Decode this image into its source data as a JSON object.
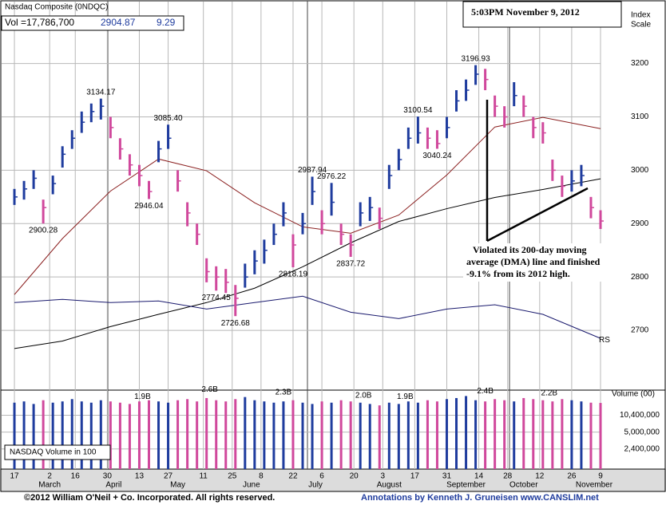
{
  "chart_data": {
    "type": "ohlc",
    "title": "Nasdaq Composite  (0NDQC)",
    "quote": {
      "volume_text": "Vol =17,786,700",
      "price": 2904.87,
      "change": 9.29
    },
    "timestamp": "5:03PM November 9, 2012",
    "axis_title": [
      "Index",
      "Scale"
    ],
    "volume_axis_title": "Volume (00)",
    "volume_legend": "NASDAQ Volume in 100",
    "note": [
      "Violated its 200-day moving",
      "average (DMA) line and finished",
      "-9.1% from its 2012 high."
    ],
    "rs_label": "RS",
    "footer_left": "©2012 William O'Neil + Co. Incorporated. All rights reserved.",
    "footer_right": "Annotations by Kenneth J. Gruneisen www.CANSLIM.net",
    "up_color": "#1f3c9e",
    "down_color": "#d0489c",
    "xlim": [
      -4,
      183
    ],
    "xticks": [
      {
        "value": 0,
        "label": "17"
      },
      {
        "value": 11,
        "label": "2"
      },
      {
        "value": 19,
        "label": "16"
      },
      {
        "value": 29,
        "label": "30"
      },
      {
        "value": 39,
        "label": "13"
      },
      {
        "value": 48,
        "label": "27"
      },
      {
        "value": 59,
        "label": "11"
      },
      {
        "value": 68,
        "label": "25"
      },
      {
        "value": 77,
        "label": "8"
      },
      {
        "value": 87,
        "label": "22"
      },
      {
        "value": 96,
        "label": "6"
      },
      {
        "value": 106,
        "label": "20"
      },
      {
        "value": 115,
        "label": "3"
      },
      {
        "value": 125,
        "label": "17"
      },
      {
        "value": 135,
        "label": "31"
      },
      {
        "value": 145,
        "label": "14"
      },
      {
        "value": 154,
        "label": "28"
      },
      {
        "value": 164,
        "label": "12"
      },
      {
        "value": 174,
        "label": "26"
      },
      {
        "value": 183,
        "label": "9"
      }
    ],
    "months": [
      {
        "value": 11,
        "label": "March"
      },
      {
        "value": 31,
        "label": "April"
      },
      {
        "value": 51,
        "label": "May"
      },
      {
        "value": 74,
        "label": "June"
      },
      {
        "value": 94,
        "label": "July"
      },
      {
        "value": 117,
        "label": "August"
      },
      {
        "value": 141,
        "label": "September"
      },
      {
        "value": 159,
        "label": "October"
      },
      {
        "value": 181,
        "label": "November"
      }
    ],
    "ylim": [
      2591,
      3316
    ],
    "yticks": [
      2700,
      2800,
      2900,
      3000,
      3100,
      3200
    ],
    "bars": [
      [
        0,
        2935,
        2965,
        2950
      ],
      [
        3,
        2945,
        2980,
        2965
      ],
      [
        6,
        2965,
        3000,
        2985
      ],
      [
        9,
        2900.28,
        2945,
        2930
      ],
      [
        12,
        2955,
        2990,
        2975
      ],
      [
        15,
        3005,
        3045,
        3030
      ],
      [
        18,
        3040,
        3075,
        3060
      ],
      [
        21,
        3070,
        3110,
        3090
      ],
      [
        24,
        3090,
        3125,
        3110
      ],
      [
        27,
        3095,
        3134.17,
        3120
      ],
      [
        30,
        3060,
        3100,
        3080
      ],
      [
        33,
        3020,
        3060,
        3040
      ],
      [
        36,
        2990,
        3030,
        3010
      ],
      [
        39,
        2970,
        3010,
        2990
      ],
      [
        42,
        2946.04,
        2980,
        2960
      ],
      [
        45,
        3015,
        3055,
        3040
      ],
      [
        48,
        3040,
        3085.4,
        3060
      ],
      [
        51,
        2960,
        3000,
        2980
      ],
      [
        54,
        2895,
        2940,
        2920
      ],
      [
        57,
        2860,
        2900,
        2880
      ],
      [
        60,
        2790,
        2835,
        2810
      ],
      [
        63,
        2774.45,
        2820,
        2800
      ],
      [
        66,
        2770,
        2815,
        2790
      ],
      [
        69,
        2726.68,
        2785,
        2760
      ],
      [
        72,
        2780,
        2825,
        2800
      ],
      [
        75,
        2805,
        2850,
        2830
      ],
      [
        78,
        2825,
        2870,
        2850
      ],
      [
        81,
        2860,
        2900,
        2880
      ],
      [
        84,
        2895,
        2940,
        2920
      ],
      [
        87,
        2818.19,
        2880,
        2860
      ],
      [
        90,
        2880,
        2920,
        2900
      ],
      [
        93,
        2935,
        2987.94,
        2960
      ],
      [
        96,
        2880,
        2925,
        2900
      ],
      [
        99,
        2915,
        2976.22,
        2940
      ],
      [
        102,
        2860,
        2900,
        2880
      ],
      [
        105,
        2837.72,
        2880,
        2860
      ],
      [
        108,
        2895,
        2940,
        2920
      ],
      [
        111,
        2905,
        2950,
        2930
      ],
      [
        114,
        2890,
        2930,
        2910
      ],
      [
        117,
        2965,
        3010,
        2990
      ],
      [
        120,
        3000,
        3040,
        3020
      ],
      [
        123,
        3040,
        3080,
        3060
      ],
      [
        126,
        3050,
        3100.54,
        3070
      ],
      [
        129,
        3040,
        3080,
        3060
      ],
      [
        132,
        3040.24,
        3075,
        3050
      ],
      [
        135,
        3060,
        3100,
        3080
      ],
      [
        138,
        3110,
        3150,
        3130
      ],
      [
        141,
        3130,
        3170,
        3150
      ],
      [
        144,
        3160,
        3196.93,
        3180
      ],
      [
        147,
        3150,
        3190,
        3170
      ],
      [
        150,
        3100,
        3140,
        3120
      ],
      [
        153,
        3080,
        3120,
        3100
      ],
      [
        156,
        3120,
        3165,
        3140
      ],
      [
        159,
        3100,
        3140,
        3120
      ],
      [
        162,
        3060,
        3100,
        3080
      ],
      [
        165,
        3050,
        3090,
        3070
      ],
      [
        168,
        2980,
        3020,
        3000
      ],
      [
        171,
        2950,
        2990,
        2970
      ],
      [
        174,
        2960,
        3000,
        2980
      ],
      [
        177,
        2970,
        3010,
        2990
      ],
      [
        180,
        2910,
        2950,
        2930
      ],
      [
        183,
        2890,
        2925,
        2904.87
      ]
    ],
    "annotations": [
      {
        "day": 9,
        "value": 2900.28
      },
      {
        "day": 27,
        "value": 3134.17
      },
      {
        "day": 42,
        "value": 2946.04
      },
      {
        "day": 48,
        "value": 3085.4,
        "label": "3085.40"
      },
      {
        "day": 63,
        "value": 2774.45
      },
      {
        "day": 69,
        "value": 2726.68
      },
      {
        "day": 87,
        "value": 2818.19
      },
      {
        "day": 93,
        "value": 2987.94
      },
      {
        "day": 99,
        "value": 2976.22
      },
      {
        "day": 105,
        "value": 2837.72
      },
      {
        "day": 126,
        "value": 3100.54
      },
      {
        "day": 132,
        "value": 3040.24
      },
      {
        "day": 144,
        "value": 3196.93
      }
    ],
    "series": [
      {
        "color": "#000000",
        "x": [
          0,
          15,
          30,
          45,
          60,
          75,
          90,
          105,
          120,
          135,
          150,
          165,
          183
        ],
        "values": [
          2666,
          2680,
          2707,
          2730,
          2752,
          2779,
          2819,
          2864,
          2904,
          2928,
          2949,
          2964,
          2984
        ]
      },
      {
        "color": "#8b2020",
        "x": [
          0,
          15,
          30,
          45,
          60,
          75,
          90,
          105,
          120,
          135,
          150,
          165,
          183
        ],
        "values": [
          2767,
          2872,
          2961,
          3021,
          2999,
          2939,
          2894,
          2882,
          2916,
          2991,
          3081,
          3099,
          3078
        ]
      },
      {
        "color": "#1a1a6e",
        "x": [
          0,
          15,
          30,
          45,
          60,
          75,
          90,
          105,
          120,
          135,
          150,
          165,
          183
        ],
        "values": [
          2752,
          2758,
          2752,
          2755,
          2740,
          2752,
          2764,
          2734,
          2722,
          2740,
          2748,
          2730,
          2685
        ]
      }
    ],
    "volume": {
      "log": true,
      "ylim": [
        1000000,
        30000000
      ],
      "yticks": [
        {
          "value": 10400000,
          "label": "10,400,000"
        },
        {
          "value": 5000000,
          "label": "5,000,000"
        },
        {
          "value": 2400000,
          "label": "2,400,000"
        }
      ],
      "values": [
        18000000,
        19000000,
        17000000,
        20000000,
        18000000,
        19000000,
        21000000,
        19000000,
        18000000,
        20000000,
        19000000,
        18000000,
        17000000,
        19000000,
        20000000,
        19000000,
        18000000,
        20000000,
        21000000,
        19000000,
        22000000,
        20000000,
        19000000,
        21000000,
        23000000,
        20000000,
        19000000,
        18000000,
        19000000,
        20000000,
        18000000,
        17000000,
        19000000,
        18000000,
        20000000,
        19000000,
        18000000,
        17000000,
        16000000,
        18000000,
        17000000,
        19000000,
        18000000,
        20000000,
        19000000,
        21000000,
        22000000,
        24000000,
        20000000,
        19000000,
        21000000,
        20000000,
        19000000,
        22000000,
        21000000,
        20000000,
        19000000,
        21000000,
        20000000,
        19000000,
        18000000,
        17786700
      ],
      "labels": [
        {
          "day": 40,
          "value": 19000000,
          "label": "1.9B"
        },
        {
          "day": 61,
          "value": 26000000,
          "label": "2.6B"
        },
        {
          "day": 84,
          "value": 23000000,
          "label": "2.3B"
        },
        {
          "day": 109,
          "value": 20000000,
          "label": "2.0B"
        },
        {
          "day": 122,
          "value": 19000000,
          "label": "1.9B"
        },
        {
          "day": 147,
          "value": 24000000,
          "label": "2.4B"
        },
        {
          "day": 167,
          "value": 22000000,
          "label": "2.2B"
        }
      ]
    }
  }
}
